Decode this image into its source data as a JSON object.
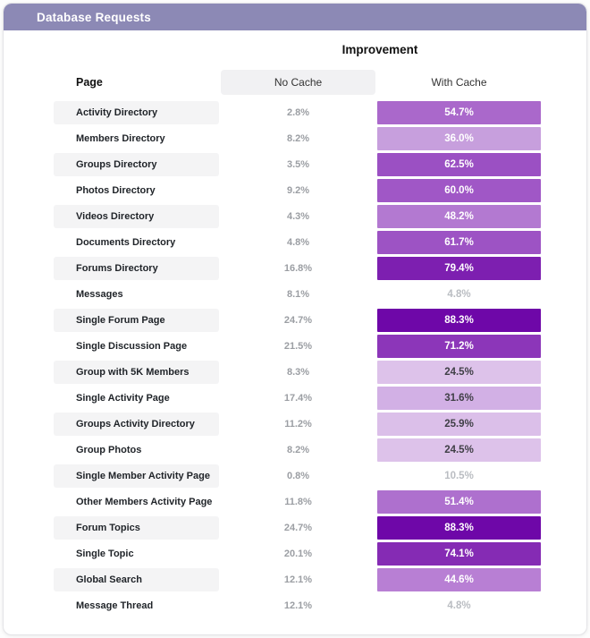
{
  "titlebar": {
    "title": "Database Requests",
    "bg": "#8c89b5"
  },
  "table": {
    "super_header": "Improvement",
    "columns": {
      "page": "Page",
      "no_cache": "No Cache",
      "with_cache": "With Cache"
    },
    "rows": [
      {
        "page": "Activity Directory",
        "no_cache": "2.8%",
        "with_cache": "54.7%",
        "cell_bg": "#aa68cb",
        "cell_fg": "#ffffff"
      },
      {
        "page": "Members Directory",
        "no_cache": "8.2%",
        "with_cache": "36.0%",
        "cell_bg": "#c79fdd",
        "cell_fg": "#ffffff"
      },
      {
        "page": "Groups Directory",
        "no_cache": "3.5%",
        "with_cache": "62.5%",
        "cell_bg": "#9b50c3",
        "cell_fg": "#ffffff"
      },
      {
        "page": "Photos Directory",
        "no_cache": "9.2%",
        "with_cache": "60.0%",
        "cell_bg": "#a057c6",
        "cell_fg": "#ffffff"
      },
      {
        "page": "Videos Directory",
        "no_cache": "4.3%",
        "with_cache": "48.2%",
        "cell_bg": "#b379d1",
        "cell_fg": "#ffffff"
      },
      {
        "page": "Documents Directory",
        "no_cache": "4.8%",
        "with_cache": "61.7%",
        "cell_bg": "#9d53c4",
        "cell_fg": "#ffffff"
      },
      {
        "page": "Forums Directory",
        "no_cache": "16.8%",
        "with_cache": "79.4%",
        "cell_bg": "#7d1fb0",
        "cell_fg": "#ffffff"
      },
      {
        "page": "Messages",
        "no_cache": "8.1%",
        "with_cache": "4.8%",
        "cell_bg": null,
        "cell_fg": "#babdc2"
      },
      {
        "page": "Single Forum Page",
        "no_cache": "24.7%",
        "with_cache": "88.3%",
        "cell_bg": "#6e07a8",
        "cell_fg": "#ffffff"
      },
      {
        "page": "Single Discussion Page",
        "no_cache": "21.5%",
        "with_cache": "71.2%",
        "cell_bg": "#8c36b9",
        "cell_fg": "#ffffff"
      },
      {
        "page": "Group with 5K Members",
        "no_cache": "8.3%",
        "with_cache": "24.5%",
        "cell_bg": "#ddc2ea",
        "cell_fg": "#3f3f46"
      },
      {
        "page": "Single Activity Page",
        "no_cache": "17.4%",
        "with_cache": "31.6%",
        "cell_bg": "#d2b0e5",
        "cell_fg": "#3f3f46"
      },
      {
        "page": "Groups Activity Directory",
        "no_cache": "11.2%",
        "with_cache": "25.9%",
        "cell_bg": "#dbbfe9",
        "cell_fg": "#3f3f46"
      },
      {
        "page": "Group Photos",
        "no_cache": "8.2%",
        "with_cache": "24.5%",
        "cell_bg": "#ddc2ea",
        "cell_fg": "#3f3f46"
      },
      {
        "page": "Single Member Activity Page",
        "no_cache": "0.8%",
        "with_cache": "10.5%",
        "cell_bg": null,
        "cell_fg": "#babdc2"
      },
      {
        "page": "Other Members Activity Page",
        "no_cache": "11.8%",
        "with_cache": "51.4%",
        "cell_bg": "#ae70ce",
        "cell_fg": "#ffffff"
      },
      {
        "page": "Forum Topics",
        "no_cache": "24.7%",
        "with_cache": "88.3%",
        "cell_bg": "#6e07a8",
        "cell_fg": "#ffffff"
      },
      {
        "page": "Single Topic",
        "no_cache": "20.1%",
        "with_cache": "74.1%",
        "cell_bg": "#852bb4",
        "cell_fg": "#ffffff"
      },
      {
        "page": "Global Search",
        "no_cache": "12.1%",
        "with_cache": "44.6%",
        "cell_bg": "#b87fd4",
        "cell_fg": "#ffffff"
      },
      {
        "page": "Message Thread",
        "no_cache": "12.1%",
        "with_cache": "4.8%",
        "cell_bg": null,
        "cell_fg": "#babdc2"
      }
    ]
  },
  "chart_data": {
    "type": "heatmap",
    "title": "Improvement",
    "categories": [
      "Activity Directory",
      "Members Directory",
      "Groups Directory",
      "Photos Directory",
      "Videos Directory",
      "Documents Directory",
      "Forums Directory",
      "Messages",
      "Single Forum Page",
      "Single Discussion Page",
      "Group with 5K Members",
      "Single Activity Page",
      "Groups Activity Directory",
      "Group Photos",
      "Single Member Activity Page",
      "Other Members Activity Page",
      "Forum Topics",
      "Single Topic",
      "Global Search",
      "Message Thread"
    ],
    "series": [
      {
        "name": "No Cache",
        "values": [
          2.8,
          8.2,
          3.5,
          9.2,
          4.3,
          4.8,
          16.8,
          8.1,
          24.7,
          21.5,
          8.3,
          17.4,
          11.2,
          8.2,
          0.8,
          11.8,
          24.7,
          20.1,
          12.1,
          12.1
        ]
      },
      {
        "name": "With Cache",
        "values": [
          54.7,
          36.0,
          62.5,
          60.0,
          48.2,
          61.7,
          79.4,
          4.8,
          88.3,
          71.2,
          24.5,
          31.6,
          25.9,
          24.5,
          10.5,
          51.4,
          88.3,
          74.1,
          44.6,
          4.8
        ]
      }
    ],
    "unit": "%",
    "legend_position": "none",
    "notes": "With Cache column shaded purple proportional to improvement value; values under ~20% unshaded"
  }
}
